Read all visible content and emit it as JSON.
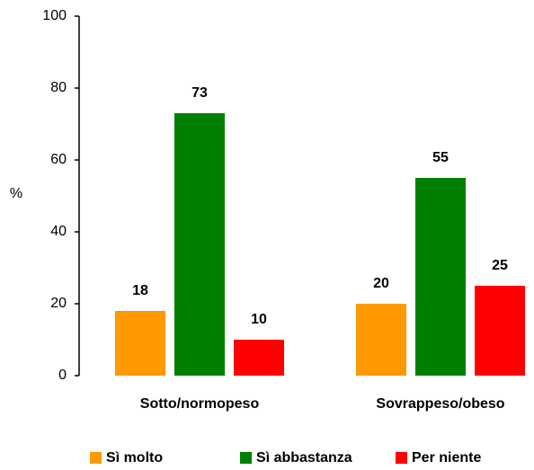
{
  "chart_data": {
    "type": "bar",
    "ylabel": "%",
    "categories": [
      "Sotto/normopeso",
      "Sovrappeso/obeso"
    ],
    "series": [
      {
        "name": "Sì molto",
        "color": "#ff9900",
        "values": [
          18,
          20
        ]
      },
      {
        "name": "Sì abbastanza",
        "color": "#008000",
        "values": [
          73,
          55
        ]
      },
      {
        "name": "Per niente",
        "color": "#ff0000",
        "values": [
          10,
          25
        ]
      }
    ],
    "ylim": [
      0,
      100
    ],
    "yticks": [
      0,
      20,
      40,
      60,
      80,
      100
    ],
    "legend": "bottom"
  }
}
